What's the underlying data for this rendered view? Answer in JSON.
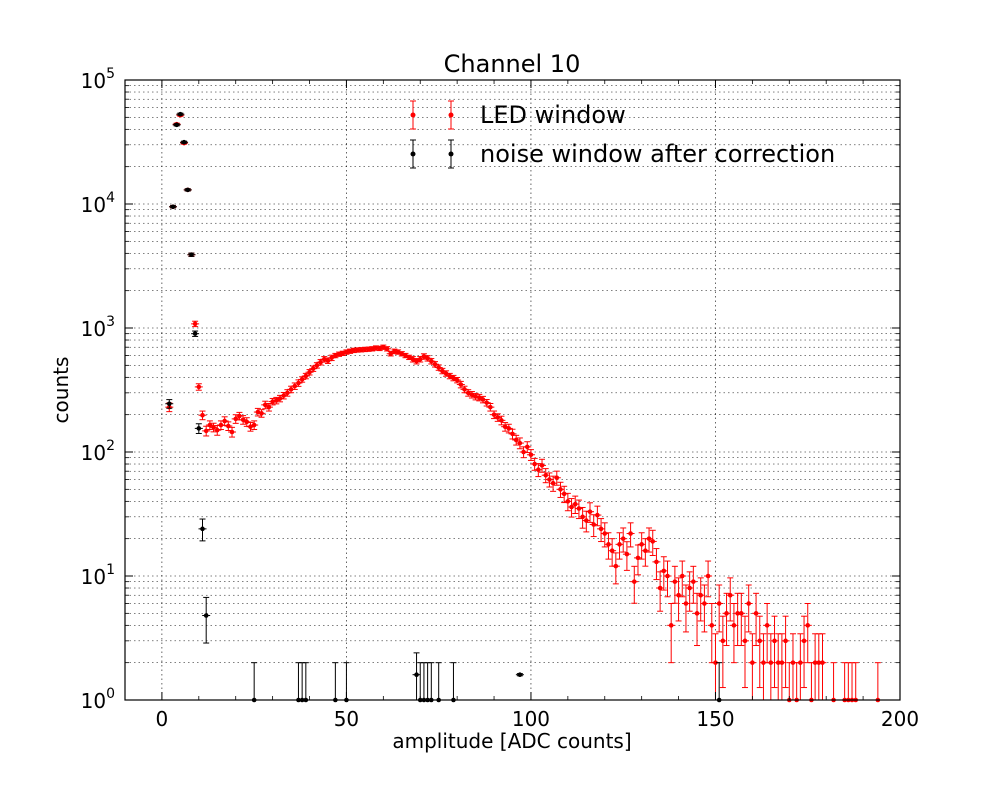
{
  "chart_data": {
    "type": "scatter",
    "title": "Channel 10",
    "xlabel": "amplitude [ADC counts]",
    "ylabel": "counts",
    "xlim": [
      -10,
      200
    ],
    "ylim": [
      1,
      100000
    ],
    "yscale": "log",
    "grid": true,
    "legend_position": "top-center",
    "x_ticks": [
      "0",
      "50",
      "100",
      "150",
      "200"
    ],
    "y_ticks": [
      {
        "base": "10",
        "exp": "0"
      },
      {
        "base": "10",
        "exp": "1"
      },
      {
        "base": "10",
        "exp": "2"
      },
      {
        "base": "10",
        "exp": "3"
      },
      {
        "base": "10",
        "exp": "4"
      },
      {
        "base": "10",
        "exp": "5"
      }
    ],
    "series": [
      {
        "name": "LED window",
        "color": "#ff0000",
        "points": [
          [
            2,
            230,
            0.08
          ],
          [
            3,
            9500,
            0.02
          ],
          [
            4,
            44000,
            0.02
          ],
          [
            5,
            52000,
            0.02
          ],
          [
            6,
            31000,
            0.02
          ],
          [
            7,
            13000,
            0.02
          ],
          [
            8,
            3900,
            0.03
          ],
          [
            9,
            1080,
            0.05
          ],
          [
            10,
            335,
            0.06
          ],
          [
            11,
            198,
            0.08
          ],
          [
            12,
            148,
            0.09
          ],
          [
            13,
            165,
            0.08
          ],
          [
            14,
            158,
            0.08
          ],
          [
            15,
            150,
            0.09
          ],
          [
            16,
            165,
            0.08
          ],
          [
            17,
            178,
            0.08
          ],
          [
            18,
            162,
            0.08
          ],
          [
            19,
            145,
            0.09
          ],
          [
            20,
            185,
            0.08
          ],
          [
            21,
            195,
            0.07
          ],
          [
            22,
            182,
            0.08
          ],
          [
            23,
            175,
            0.08
          ],
          [
            24,
            160,
            0.08
          ],
          [
            25,
            165,
            0.08
          ],
          [
            26,
            210,
            0.07
          ],
          [
            27,
            205,
            0.07
          ],
          [
            28,
            240,
            0.07
          ],
          [
            29,
            230,
            0.07
          ],
          [
            30,
            255,
            0.06
          ],
          [
            31,
            260,
            0.06
          ],
          [
            32,
            270,
            0.06
          ],
          [
            33,
            285,
            0.06
          ],
          [
            34,
            300,
            0.06
          ],
          [
            35,
            320,
            0.06
          ],
          [
            36,
            340,
            0.06
          ],
          [
            37,
            360,
            0.06
          ],
          [
            38,
            385,
            0.05
          ],
          [
            39,
            410,
            0.05
          ],
          [
            40,
            440,
            0.05
          ],
          [
            41,
            470,
            0.05
          ],
          [
            42,
            500,
            0.05
          ],
          [
            43,
            530,
            0.05
          ],
          [
            44,
            560,
            0.05
          ],
          [
            45,
            545,
            0.05
          ],
          [
            46,
            575,
            0.05
          ],
          [
            47,
            600,
            0.04
          ],
          [
            48,
            615,
            0.04
          ],
          [
            49,
            625,
            0.04
          ],
          [
            50,
            640,
            0.04
          ],
          [
            51,
            650,
            0.04
          ],
          [
            52,
            660,
            0.04
          ],
          [
            53,
            665,
            0.04
          ],
          [
            54,
            668,
            0.04
          ],
          [
            55,
            672,
            0.04
          ],
          [
            56,
            675,
            0.04
          ],
          [
            57,
            680,
            0.04
          ],
          [
            58,
            690,
            0.04
          ],
          [
            59,
            685,
            0.04
          ],
          [
            60,
            700,
            0.04
          ],
          [
            61,
            680,
            0.04
          ],
          [
            62,
            620,
            0.04
          ],
          [
            63,
            650,
            0.04
          ],
          [
            64,
            640,
            0.04
          ],
          [
            65,
            620,
            0.04
          ],
          [
            66,
            600,
            0.04
          ],
          [
            67,
            580,
            0.04
          ],
          [
            68,
            560,
            0.05
          ],
          [
            69,
            540,
            0.05
          ],
          [
            70,
            560,
            0.05
          ],
          [
            71,
            590,
            0.05
          ],
          [
            72,
            570,
            0.05
          ],
          [
            73,
            540,
            0.05
          ],
          [
            74,
            510,
            0.05
          ],
          [
            75,
            480,
            0.05
          ],
          [
            76,
            450,
            0.05
          ],
          [
            77,
            430,
            0.05
          ],
          [
            78,
            410,
            0.05
          ],
          [
            79,
            395,
            0.05
          ],
          [
            80,
            380,
            0.05
          ],
          [
            81,
            350,
            0.06
          ],
          [
            82,
            320,
            0.06
          ],
          [
            83,
            300,
            0.06
          ],
          [
            84,
            290,
            0.06
          ],
          [
            85,
            280,
            0.06
          ],
          [
            86,
            275,
            0.06
          ],
          [
            87,
            265,
            0.06
          ],
          [
            88,
            250,
            0.06
          ],
          [
            89,
            230,
            0.07
          ],
          [
            90,
            200,
            0.07
          ],
          [
            91,
            190,
            0.07
          ],
          [
            92,
            180,
            0.08
          ],
          [
            93,
            160,
            0.08
          ],
          [
            94,
            155,
            0.08
          ],
          [
            95,
            140,
            0.09
          ],
          [
            96,
            125,
            0.09
          ],
          [
            97,
            118,
            0.1
          ],
          [
            98,
            100,
            0.1
          ],
          [
            99,
            110,
            0.1
          ],
          [
            100,
            95,
            0.1
          ],
          [
            101,
            80,
            0.11
          ],
          [
            102,
            72,
            0.12
          ],
          [
            103,
            78,
            0.12
          ],
          [
            104,
            65,
            0.13
          ],
          [
            105,
            60,
            0.13
          ],
          [
            106,
            56,
            0.14
          ],
          [
            107,
            62,
            0.13
          ],
          [
            108,
            50,
            0.14
          ],
          [
            109,
            46,
            0.15
          ],
          [
            110,
            40,
            0.16
          ],
          [
            111,
            36,
            0.17
          ],
          [
            112,
            38,
            0.16
          ],
          [
            113,
            35,
            0.17
          ],
          [
            114,
            30,
            0.19
          ],
          [
            115,
            28,
            0.19
          ],
          [
            116,
            33,
            0.18
          ],
          [
            117,
            26,
            0.2
          ],
          [
            118,
            31,
            0.18
          ],
          [
            119,
            24,
            0.21
          ],
          [
            120,
            22,
            0.22
          ],
          [
            121,
            18,
            0.24
          ],
          [
            122,
            16,
            0.25
          ],
          [
            123,
            12,
            0.28
          ],
          [
            124,
            18,
            0.24
          ],
          [
            125,
            20,
            0.22
          ],
          [
            126,
            15,
            0.26
          ],
          [
            127,
            22,
            0.22
          ],
          [
            128,
            9,
            0.33
          ],
          [
            129,
            14,
            0.27
          ],
          [
            130,
            18,
            0.24
          ],
          [
            131,
            16,
            0.25
          ],
          [
            132,
            20,
            0.22
          ],
          [
            133,
            19,
            0.23
          ],
          [
            134,
            13,
            0.28
          ],
          [
            135,
            8,
            0.35
          ],
          [
            136,
            11,
            0.3
          ],
          [
            137,
            10,
            0.32
          ],
          [
            138,
            4,
            0.5
          ],
          [
            139,
            9,
            0.33
          ],
          [
            140,
            7,
            0.38
          ],
          [
            141,
            10,
            0.32
          ],
          [
            142,
            6,
            0.41
          ],
          [
            143,
            8,
            0.35
          ],
          [
            144,
            9,
            0.33
          ],
          [
            145,
            5,
            0.45
          ],
          [
            146,
            7,
            0.38
          ],
          [
            147,
            6,
            0.41
          ],
          [
            148,
            10,
            0.32
          ],
          [
            149,
            4,
            0.5
          ],
          [
            150,
            2,
            0.71
          ],
          [
            151,
            6,
            0.41
          ],
          [
            152,
            3,
            0.58
          ],
          [
            153,
            5,
            0.45
          ],
          [
            154,
            7,
            0.38
          ],
          [
            155,
            4,
            0.5
          ],
          [
            156,
            5,
            0.45
          ],
          [
            157,
            5,
            0.45
          ],
          [
            158,
            3,
            0.58
          ],
          [
            159,
            6,
            0.41
          ],
          [
            160,
            2,
            0.71
          ],
          [
            161,
            5,
            0.45
          ],
          [
            162,
            3,
            0.58
          ],
          [
            163,
            2,
            0.71
          ],
          [
            164,
            4,
            0.5
          ],
          [
            165,
            2,
            0.71
          ],
          [
            166,
            3,
            0.58
          ],
          [
            167,
            2,
            0.71
          ],
          [
            168,
            2,
            0.71
          ],
          [
            169,
            3,
            0.58
          ],
          [
            170,
            1,
            1
          ],
          [
            171,
            2,
            0.71
          ],
          [
            172,
            1,
            1
          ],
          [
            173,
            2,
            0.71
          ],
          [
            174,
            3,
            0.58
          ],
          [
            175,
            4,
            0.5
          ],
          [
            176,
            1,
            1
          ],
          [
            177,
            2,
            0.71
          ],
          [
            178,
            2,
            0.71
          ],
          [
            179,
            2,
            0.71
          ],
          [
            182,
            1,
            1
          ],
          [
            185,
            1,
            1
          ],
          [
            186,
            1,
            1
          ],
          [
            187,
            1,
            1
          ],
          [
            188,
            1,
            1
          ],
          [
            194,
            1,
            1
          ]
        ]
      },
      {
        "name": "noise window after correction",
        "color": "#000000",
        "points": [
          [
            2,
            245,
            0.08
          ],
          [
            3,
            9500,
            0.02
          ],
          [
            4,
            43500,
            0.02
          ],
          [
            5,
            53000,
            0.02
          ],
          [
            6,
            31500,
            0.02
          ],
          [
            7,
            13000,
            0.02
          ],
          [
            8,
            3900,
            0.03
          ],
          [
            9,
            900,
            0.05
          ],
          [
            10,
            155,
            0.09
          ],
          [
            11,
            24,
            0.2
          ],
          [
            12,
            4.8,
            0.4
          ],
          [
            25,
            1,
            1
          ],
          [
            37,
            1,
            1
          ],
          [
            38,
            1,
            1
          ],
          [
            39,
            1,
            1
          ],
          [
            47,
            1,
            1
          ],
          [
            50,
            1,
            1
          ],
          [
            69,
            1.6,
            0.5
          ],
          [
            70,
            1,
            1
          ],
          [
            71,
            1,
            1
          ],
          [
            72,
            1,
            1
          ],
          [
            73,
            1,
            1
          ],
          [
            75,
            1,
            1
          ],
          [
            79,
            1,
            1
          ],
          [
            97,
            1.6,
            0.02
          ],
          [
            151,
            1,
            1
          ]
        ]
      }
    ]
  }
}
